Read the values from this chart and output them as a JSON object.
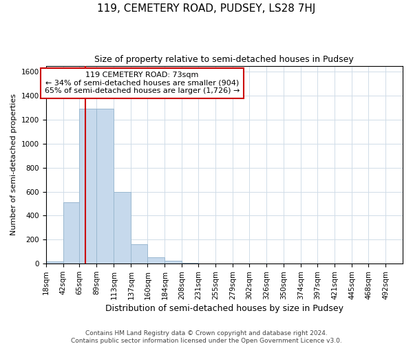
{
  "title": "119, CEMETERY ROAD, PUDSEY, LS28 7HJ",
  "subtitle": "Size of property relative to semi-detached houses in Pudsey",
  "xlabel": "Distribution of semi-detached houses by size in Pudsey",
  "ylabel": "Number of semi-detached properties",
  "footnote1": "Contains HM Land Registry data © Crown copyright and database right 2024.",
  "footnote2": "Contains public sector information licensed under the Open Government Licence v3.0.",
  "bar_edges": [
    18,
    42,
    65,
    89,
    113,
    137,
    160,
    184,
    208,
    231,
    255,
    279,
    302,
    326,
    350,
    374,
    397,
    421,
    445,
    468,
    492
  ],
  "bar_heights": [
    20,
    510,
    1290,
    1290,
    600,
    160,
    55,
    25,
    5,
    0,
    0,
    0,
    0,
    0,
    0,
    0,
    0,
    0,
    0,
    0
  ],
  "bar_color": "#c6d9ec",
  "bar_edge_color": "#9ab8d0",
  "grid_color": "#d0dce8",
  "background_color": "#ffffff",
  "property_size": 73,
  "red_line_color": "#cc0000",
  "annotation_line1": "119 CEMETERY ROAD: 73sqm",
  "annotation_line2": "← 34% of semi-detached houses are smaller (904)",
  "annotation_line3": "65% of semi-detached houses are larger (1,726) →",
  "annotation_box_color": "#cc0000",
  "ylim": [
    0,
    1650
  ],
  "yticks": [
    0,
    200,
    400,
    600,
    800,
    1000,
    1200,
    1400,
    1600
  ],
  "title_fontsize": 11,
  "subtitle_fontsize": 9,
  "ylabel_fontsize": 8,
  "xlabel_fontsize": 9,
  "tick_fontsize": 7.5,
  "footnote_fontsize": 6.5,
  "annotation_fontsize": 8
}
